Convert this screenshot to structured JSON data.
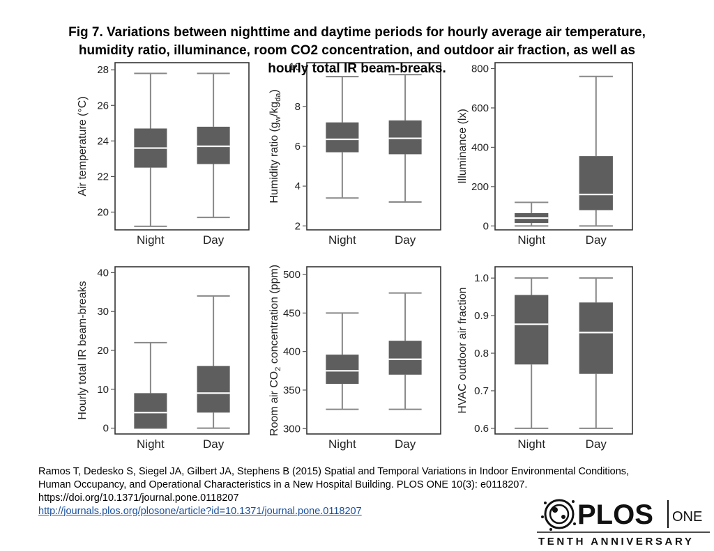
{
  "figure_title_lines": [
    "Fig 7. Variations between nighttime and daytime periods for hourly average air temperature,",
    "humidity ratio, illuminance, room CO2 concentration, and outdoor air fraction, as well as",
    "hourly total IR beam-breaks."
  ],
  "chart_data": [
    {
      "type": "boxplot",
      "ylabel": "Air temperature (°C)",
      "categories": [
        "Night",
        "Day"
      ],
      "ylim": [
        19.0,
        28.4
      ],
      "yticks": [
        20,
        22,
        24,
        26,
        28
      ],
      "series": [
        {
          "name": "Night",
          "whisker_low": 19.2,
          "q1": 22.5,
          "median": 23.6,
          "q3": 24.7,
          "whisker_high": 27.8
        },
        {
          "name": "Day",
          "whisker_low": 19.7,
          "q1": 22.7,
          "median": 23.7,
          "q3": 24.8,
          "whisker_high": 27.8
        }
      ]
    },
    {
      "type": "boxplot",
      "ylabel": "Humidity ratio (g_w/kg_da)",
      "ylabel_parts": [
        "Humidity ratio (g",
        "w",
        "/kg",
        "da",
        ")"
      ],
      "categories": [
        "Night",
        "Day"
      ],
      "ylim": [
        1.8,
        10.2
      ],
      "yticks": [
        2,
        4,
        6,
        8,
        10
      ],
      "series": [
        {
          "name": "Night",
          "whisker_low": 3.4,
          "q1": 5.7,
          "median": 6.35,
          "q3": 7.2,
          "whisker_high": 9.5
        },
        {
          "name": "Day",
          "whisker_low": 3.2,
          "q1": 5.6,
          "median": 6.4,
          "q3": 7.3,
          "whisker_high": 9.6
        }
      ]
    },
    {
      "type": "boxplot",
      "ylabel": "Illuminance (lx)",
      "categories": [
        "Night",
        "Day"
      ],
      "ylim": [
        -20,
        830
      ],
      "yticks": [
        0,
        200,
        400,
        600,
        800
      ],
      "series": [
        {
          "name": "Night",
          "whisker_low": 0,
          "q1": 15,
          "median": 40,
          "q3": 65,
          "whisker_high": 120
        },
        {
          "name": "Day",
          "whisker_low": 0,
          "q1": 80,
          "median": 160,
          "q3": 355,
          "whisker_high": 760
        }
      ]
    },
    {
      "type": "boxplot",
      "ylabel": "Hourly total IR beam-breaks",
      "categories": [
        "Night",
        "Day"
      ],
      "ylim": [
        -1.5,
        41.5
      ],
      "yticks": [
        0,
        10,
        20,
        30,
        40
      ],
      "series": [
        {
          "name": "Night",
          "whisker_low": 0,
          "q1": 0,
          "median": 4,
          "q3": 9,
          "whisker_high": 22
        },
        {
          "name": "Day",
          "whisker_low": 0,
          "q1": 4,
          "median": 9,
          "q3": 16,
          "whisker_high": 34
        }
      ]
    },
    {
      "type": "boxplot",
      "ylabel": "Room air CO2 concentration (ppm)",
      "ylabel_parts": [
        "Room air CO",
        "2",
        " concentration (ppm)"
      ],
      "categories": [
        "Night",
        "Day"
      ],
      "ylim": [
        293,
        510
      ],
      "yticks": [
        300,
        350,
        400,
        450,
        500
      ],
      "series": [
        {
          "name": "Night",
          "whisker_low": 325,
          "q1": 358,
          "median": 375,
          "q3": 396,
          "whisker_high": 450
        },
        {
          "name": "Day",
          "whisker_low": 325,
          "q1": 370,
          "median": 390,
          "q3": 414,
          "whisker_high": 476
        }
      ]
    },
    {
      "type": "boxplot",
      "ylabel": "HVAC outdoor air fraction",
      "categories": [
        "Night",
        "Day"
      ],
      "ylim": [
        0.585,
        1.03
      ],
      "yticks": [
        0.6,
        0.7,
        0.8,
        0.9,
        1.0
      ],
      "ytick_labels": [
        "0.6",
        "0.7",
        "0.8",
        "0.9",
        "1.0"
      ],
      "series": [
        {
          "name": "Night",
          "whisker_low": 0.6,
          "q1": 0.77,
          "median": 0.877,
          "q3": 0.955,
          "whisker_high": 1.0
        },
        {
          "name": "Day",
          "whisker_low": 0.6,
          "q1": 0.745,
          "median": 0.855,
          "q3": 0.935,
          "whisker_high": 1.0
        }
      ]
    }
  ],
  "citation": {
    "line1": "Ramos T, Dedesko S, Siegel JA, Gilbert JA, Stephens B (2015) Spatial and Temporal Variations in Indoor Environmental Conditions,",
    "line2": "Human Occupancy, and Operational Characteristics in a New Hospital Building. PLOS ONE 10(3): e0118207.",
    "doi": "https://doi.org/10.1371/journal.pone.0118207",
    "link": "http://journals.plos.org/plosone/article?id=10.1371/journal.pone.0118207"
  },
  "logo": {
    "brand": "PLOS",
    "product": "ONE",
    "tagline": "TENTH ANNIVERSARY"
  },
  "colors": {
    "box": "#5e5e5e",
    "whisker": "#888888",
    "median": "#ffffff",
    "link": "#1a4f9c"
  }
}
